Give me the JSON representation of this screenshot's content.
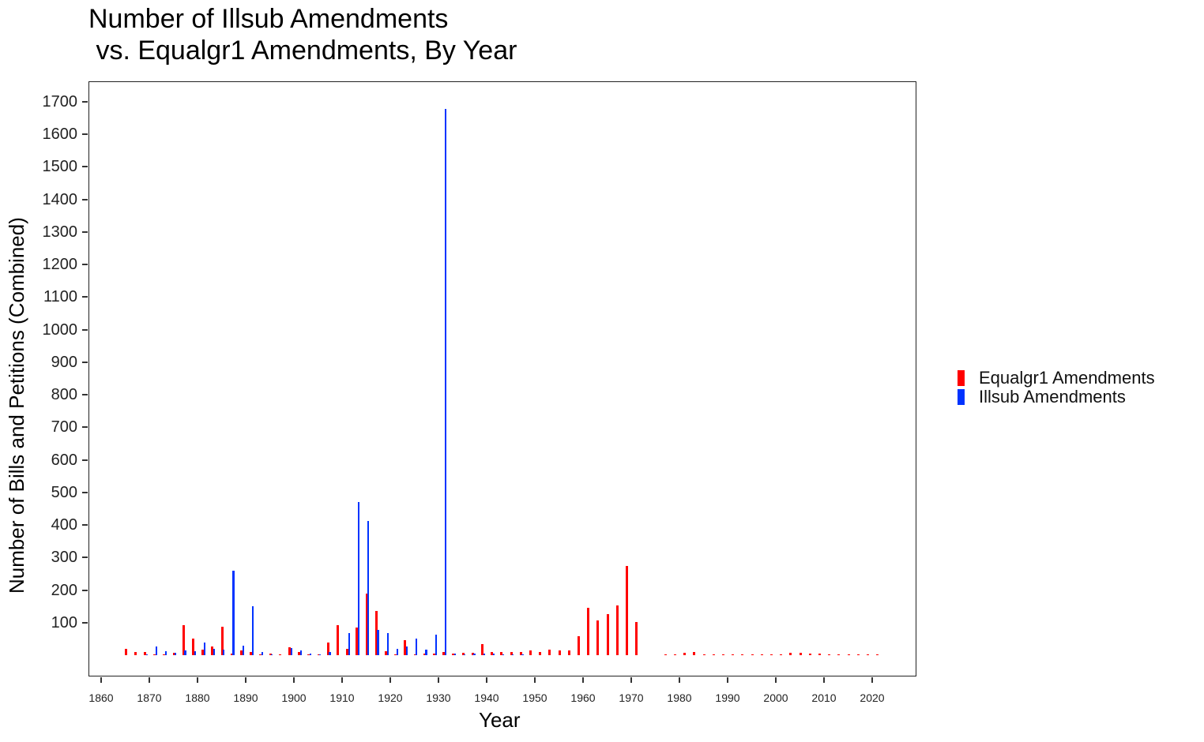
{
  "chart_data": {
    "type": "bar",
    "title": "Number of Illsub Amendments\n vs. Equalgr1 Amendments, By Year",
    "xlabel": "Year",
    "ylabel": "Number of Bills and Petitions (Combined)",
    "xlim": [
      1858,
      2024
    ],
    "ylim": [
      -70,
      1770
    ],
    "x_ticks": [
      1860,
      1870,
      1880,
      1890,
      1900,
      1910,
      1920,
      1930,
      1940,
      1950,
      1960,
      1970,
      1980,
      1990,
      2000,
      2010,
      2020
    ],
    "y_ticks": [
      100,
      200,
      300,
      400,
      500,
      600,
      700,
      800,
      900,
      1000,
      1100,
      1200,
      1300,
      1400,
      1500,
      1600,
      1700
    ],
    "grid": false,
    "legend_position": "right",
    "categories": [
      1865,
      1867,
      1869,
      1871,
      1873,
      1875,
      1877,
      1879,
      1881,
      1883,
      1885,
      1887,
      1889,
      1891,
      1893,
      1895,
      1897,
      1899,
      1901,
      1903,
      1905,
      1907,
      1909,
      1911,
      1913,
      1915,
      1917,
      1919,
      1921,
      1923,
      1925,
      1927,
      1929,
      1931,
      1933,
      1935,
      1937,
      1939,
      1941,
      1943,
      1945,
      1947,
      1949,
      1951,
      1953,
      1955,
      1957,
      1959,
      1961,
      1963,
      1965,
      1967,
      1969,
      1971,
      1973,
      1975,
      1977,
      1979,
      1981,
      1983,
      1985,
      1987,
      1989,
      1991,
      1993,
      1995,
      1997,
      1999,
      2001,
      2003,
      2005,
      2007,
      2009,
      2011,
      2013,
      2015,
      2017,
      2019,
      2021
    ],
    "series": [
      {
        "name": "Equalgr1 Amendments",
        "color": "#ff0000",
        "values": [
          20,
          10,
          10,
          2,
          1,
          8,
          92,
          52,
          16,
          27,
          88,
          4,
          15,
          10,
          2,
          6,
          3,
          25,
          10,
          3,
          2,
          38,
          92,
          20,
          84,
          190,
          135,
          12,
          1,
          47,
          3,
          6,
          5,
          10,
          4,
          8,
          8,
          35,
          9,
          10,
          10,
          10,
          14,
          10,
          18,
          15,
          14,
          58,
          145,
          107,
          126,
          153,
          273,
          103,
          0,
          0,
          2,
          1,
          8,
          10,
          2,
          2,
          2,
          2,
          2,
          1,
          2,
          2,
          2,
          8,
          7,
          5,
          5,
          2,
          2,
          2,
          2,
          2,
          2
        ]
      },
      {
        "name": "Illsub Amendments",
        "color": "#0033ff",
        "values": [
          0,
          0,
          2,
          27,
          12,
          7,
          14,
          12,
          40,
          19,
          18,
          259,
          30,
          150,
          10,
          2,
          0,
          23,
          15,
          6,
          3,
          10,
          0,
          68,
          470,
          412,
          78,
          68,
          20,
          27,
          51,
          17,
          62,
          1678,
          6,
          2,
          5,
          4,
          6,
          2,
          1,
          1,
          0,
          0,
          0,
          0,
          0,
          0,
          0,
          0,
          0,
          0,
          0,
          0,
          0,
          0,
          0,
          0,
          0,
          0,
          0,
          0,
          0,
          0,
          0,
          0,
          0,
          0,
          0,
          0,
          0,
          0,
          0,
          0,
          0,
          0,
          0,
          0,
          0
        ]
      }
    ]
  },
  "legend": {
    "items": [
      {
        "label": "Equalgr1 Amendments",
        "color": "#ff0000"
      },
      {
        "label": "Illsub Amendments",
        "color": "#0033ff"
      }
    ]
  }
}
